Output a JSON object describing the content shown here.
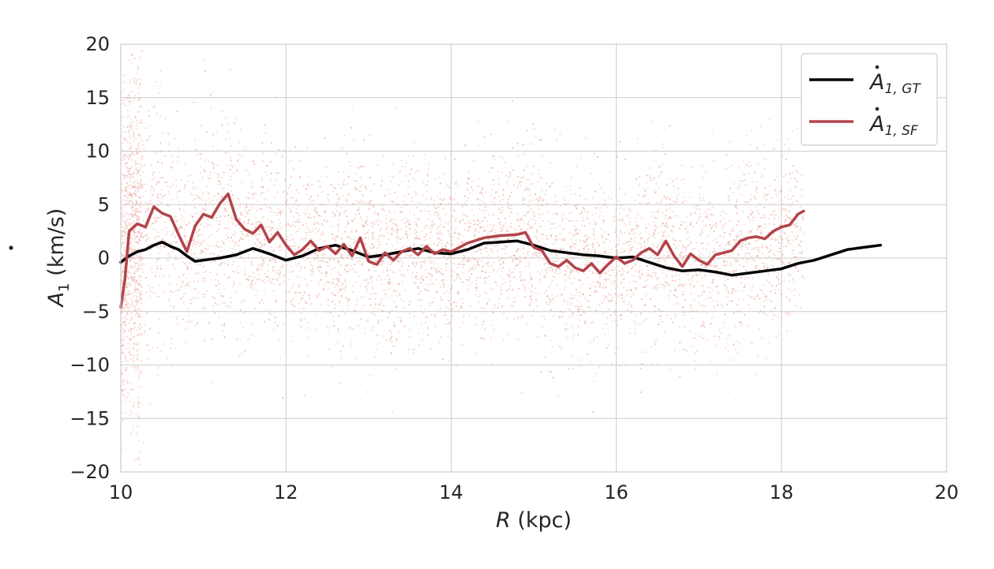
{
  "colors": {
    "gt": "#000000",
    "sf": "#b3444a",
    "scatter": "#e79a8c",
    "grid": "#cccccc",
    "frame": "#cccccc",
    "background": "#ffffff"
  },
  "chart_data": {
    "type": "line",
    "title": "",
    "xlabel": {
      "symbol": "R",
      "rest": " (kpc)"
    },
    "ylabel": {
      "symbol": "A",
      "sub": "1",
      "rest": " (km/s)"
    },
    "xlim": [
      10,
      20
    ],
    "ylim": [
      -20,
      20
    ],
    "xticks": [
      "10",
      "12",
      "14",
      "16",
      "18",
      "20"
    ],
    "yticks": [
      "−20",
      "−15",
      "−10",
      "−5",
      "0",
      "5",
      "10",
      "15",
      "20"
    ],
    "grid": true,
    "legend_position": "top-right",
    "series": [
      {
        "key": "gt",
        "legend": {
          "symbol": "A",
          "sub": "1, GT"
        },
        "x": [
          10.0,
          10.1,
          10.2,
          10.3,
          10.4,
          10.5,
          10.6,
          10.7,
          10.8,
          10.9,
          11.0,
          11.2,
          11.4,
          11.6,
          11.8,
          12.0,
          12.2,
          12.4,
          12.6,
          12.8,
          13.0,
          13.2,
          13.4,
          13.6,
          13.8,
          14.0,
          14.2,
          14.4,
          14.6,
          14.8,
          15.0,
          15.2,
          15.4,
          15.6,
          15.8,
          16.0,
          16.2,
          16.4,
          16.6,
          16.8,
          17.0,
          17.2,
          17.4,
          17.6,
          17.8,
          18.0,
          18.2,
          18.4,
          18.6,
          18.8,
          19.0,
          19.2
        ],
        "values": [
          -0.4,
          0.2,
          0.6,
          0.8,
          1.2,
          1.5,
          1.1,
          0.8,
          0.2,
          -0.3,
          -0.2,
          0.0,
          0.3,
          0.9,
          0.4,
          -0.2,
          0.2,
          0.9,
          1.2,
          0.7,
          0.1,
          0.3,
          0.6,
          0.9,
          0.5,
          0.4,
          0.8,
          1.4,
          1.5,
          1.6,
          1.2,
          0.7,
          0.5,
          0.3,
          0.2,
          0.0,
          0.1,
          -0.4,
          -0.9,
          -1.2,
          -1.1,
          -1.3,
          -1.6,
          -1.4,
          -1.2,
          -1.0,
          -0.5,
          -0.2,
          0.3,
          0.8,
          1.0,
          1.2
        ]
      },
      {
        "key": "sf",
        "legend": {
          "symbol": "A",
          "sub": "1, SF"
        },
        "x": [
          10.0,
          10.05,
          10.1,
          10.2,
          10.3,
          10.4,
          10.5,
          10.6,
          10.7,
          10.8,
          10.9,
          11.0,
          11.1,
          11.2,
          11.3,
          11.4,
          11.5,
          11.6,
          11.7,
          11.8,
          11.9,
          12.0,
          12.1,
          12.2,
          12.3,
          12.4,
          12.5,
          12.6,
          12.7,
          12.8,
          12.9,
          13.0,
          13.1,
          13.2,
          13.3,
          13.4,
          13.5,
          13.6,
          13.7,
          13.8,
          13.9,
          14.0,
          14.2,
          14.4,
          14.6,
          14.8,
          14.9,
          15.0,
          15.1,
          15.2,
          15.3,
          15.4,
          15.5,
          15.6,
          15.7,
          15.8,
          15.9,
          16.0,
          16.1,
          16.2,
          16.3,
          16.4,
          16.5,
          16.6,
          16.7,
          16.8,
          16.9,
          17.0,
          17.1,
          17.2,
          17.3,
          17.4,
          17.5,
          17.6,
          17.7,
          17.8,
          17.9,
          18.0,
          18.1,
          18.2,
          18.27
        ],
        "values": [
          -4.6,
          -2.0,
          2.5,
          3.2,
          2.9,
          4.8,
          4.2,
          3.9,
          2.2,
          0.6,
          3.0,
          4.1,
          3.8,
          5.1,
          6.0,
          3.6,
          2.7,
          2.3,
          3.1,
          1.5,
          2.4,
          1.2,
          0.3,
          0.8,
          1.6,
          0.7,
          1.1,
          0.4,
          1.3,
          0.2,
          1.9,
          -0.3,
          -0.6,
          0.5,
          -0.2,
          0.6,
          0.9,
          0.3,
          1.1,
          0.4,
          0.8,
          0.6,
          1.4,
          1.9,
          2.1,
          2.2,
          2.4,
          1.0,
          0.7,
          -0.5,
          -0.8,
          -0.2,
          -0.9,
          -1.2,
          -0.5,
          -1.4,
          -0.6,
          0.1,
          -0.5,
          -0.2,
          0.5,
          0.9,
          0.3,
          1.6,
          0.2,
          -0.8,
          0.4,
          -0.2,
          -0.6,
          0.3,
          0.5,
          0.7,
          1.6,
          1.9,
          2.0,
          1.8,
          2.5,
          2.9,
          3.1,
          4.1,
          4.4
        ]
      }
    ]
  }
}
